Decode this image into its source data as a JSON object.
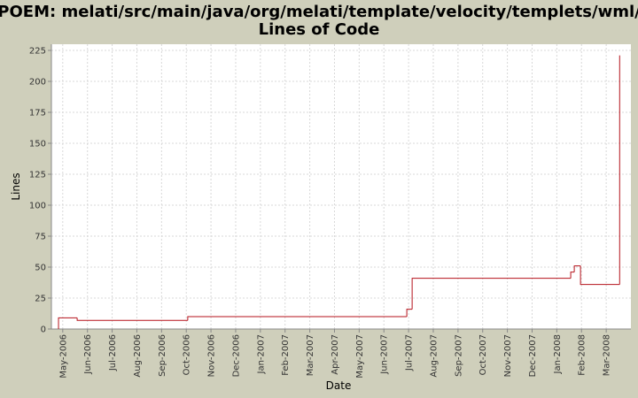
{
  "chart_data": {
    "type": "step-line",
    "title": [
      "POEM: melati/src/main/java/org/melati/template/velocity/templets/wml/",
      "Lines of Code"
    ],
    "x_label": "Date",
    "y_label": "Lines",
    "x": [
      2006.319,
      2006.319,
      2006.382,
      2006.755,
      2007.494,
      2007.512,
      2008.047,
      2008.059,
      2008.08,
      2008.212
    ],
    "series": [
      {
        "name": "Lines",
        "color": "#b5121b",
        "values": [
          0,
          9,
          7,
          10,
          16,
          41,
          46,
          51,
          36,
          221
        ]
      }
    ],
    "xlim": [
      2006.295,
      2008.25
    ],
    "xticks": [
      {
        "value": 2006.3333,
        "label": "May-2006"
      },
      {
        "value": 2006.4167,
        "label": "Jun-2006"
      },
      {
        "value": 2006.5,
        "label": "Jul-2006"
      },
      {
        "value": 2006.5833,
        "label": "Aug-2006"
      },
      {
        "value": 2006.6667,
        "label": "Sep-2006"
      },
      {
        "value": 2006.75,
        "label": "Oct-2006"
      },
      {
        "value": 2006.8333,
        "label": "Nov-2006"
      },
      {
        "value": 2006.9167,
        "label": "Dec-2006"
      },
      {
        "value": 2007.0,
        "label": "Jan-2007"
      },
      {
        "value": 2007.0833,
        "label": "Feb-2007"
      },
      {
        "value": 2007.1667,
        "label": "Mar-2007"
      },
      {
        "value": 2007.25,
        "label": "Apr-2007"
      },
      {
        "value": 2007.3333,
        "label": "May-2007"
      },
      {
        "value": 2007.4167,
        "label": "Jun-2007"
      },
      {
        "value": 2007.5,
        "label": "Jul-2007"
      },
      {
        "value": 2007.5833,
        "label": "Aug-2007"
      },
      {
        "value": 2007.6667,
        "label": "Sep-2007"
      },
      {
        "value": 2007.75,
        "label": "Oct-2007"
      },
      {
        "value": 2007.8333,
        "label": "Nov-2007"
      },
      {
        "value": 2007.9167,
        "label": "Dec-2007"
      },
      {
        "value": 2008.0,
        "label": "Jan-2008"
      },
      {
        "value": 2008.0833,
        "label": "Feb-2008"
      },
      {
        "value": 2008.1667,
        "label": "Mar-2008"
      }
    ],
    "ylim": [
      0,
      230
    ],
    "yticks": [
      0,
      25,
      50,
      75,
      100,
      125,
      150,
      175,
      200,
      225
    ],
    "grid": true
  }
}
